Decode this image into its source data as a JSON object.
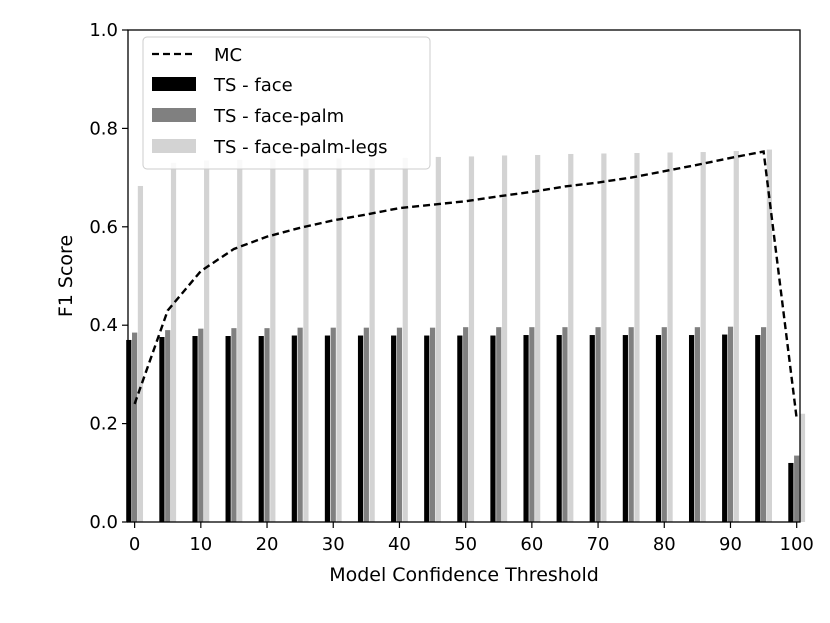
{
  "chart_data": {
    "type": "bar",
    "title": "",
    "xlabel": "Model Confidence Threshold",
    "ylabel": "F1 Score",
    "xlim": [
      -1,
      100.5
    ],
    "ylim": [
      0.0,
      1.0
    ],
    "x_ticks": [
      "0",
      "10",
      "20",
      "30",
      "40",
      "50",
      "60",
      "70",
      "80",
      "90",
      "100"
    ],
    "y_ticks": [
      "0.0",
      "0.2",
      "0.4",
      "0.6",
      "0.8",
      "1.0"
    ],
    "x": [
      0,
      5,
      10,
      15,
      20,
      25,
      30,
      35,
      40,
      45,
      50,
      55,
      60,
      65,
      70,
      75,
      80,
      85,
      90,
      95,
      100
    ],
    "series": [
      {
        "name": "MC",
        "kind": "line",
        "style": "dashed",
        "color": "#000000",
        "values": [
          0.24,
          0.43,
          0.51,
          0.555,
          0.58,
          0.598,
          0.613,
          0.625,
          0.638,
          0.645,
          0.652,
          0.662,
          0.671,
          0.682,
          0.69,
          0.7,
          0.713,
          0.726,
          0.74,
          0.753,
          0.21
        ]
      },
      {
        "name": "TS - face",
        "kind": "bar",
        "color": "#000000",
        "values": [
          0.37,
          0.376,
          0.378,
          0.378,
          0.378,
          0.379,
          0.379,
          0.379,
          0.379,
          0.379,
          0.379,
          0.379,
          0.38,
          0.38,
          0.38,
          0.38,
          0.38,
          0.38,
          0.381,
          0.38,
          0.12
        ]
      },
      {
        "name": "TS - face-palm",
        "kind": "bar",
        "color": "#808080",
        "values": [
          0.385,
          0.39,
          0.393,
          0.394,
          0.394,
          0.395,
          0.395,
          0.395,
          0.395,
          0.395,
          0.396,
          0.396,
          0.396,
          0.396,
          0.396,
          0.396,
          0.396,
          0.396,
          0.397,
          0.396,
          0.135
        ]
      },
      {
        "name": "TS - face-palm-legs",
        "kind": "bar",
        "color": "#d3d3d3",
        "values": [
          0.683,
          0.73,
          0.735,
          0.736,
          0.737,
          0.738,
          0.739,
          0.739,
          0.74,
          0.742,
          0.743,
          0.745,
          0.746,
          0.748,
          0.749,
          0.75,
          0.751,
          0.752,
          0.754,
          0.757,
          0.22
        ]
      }
    ],
    "legend": {
      "position": "top-left"
    }
  }
}
